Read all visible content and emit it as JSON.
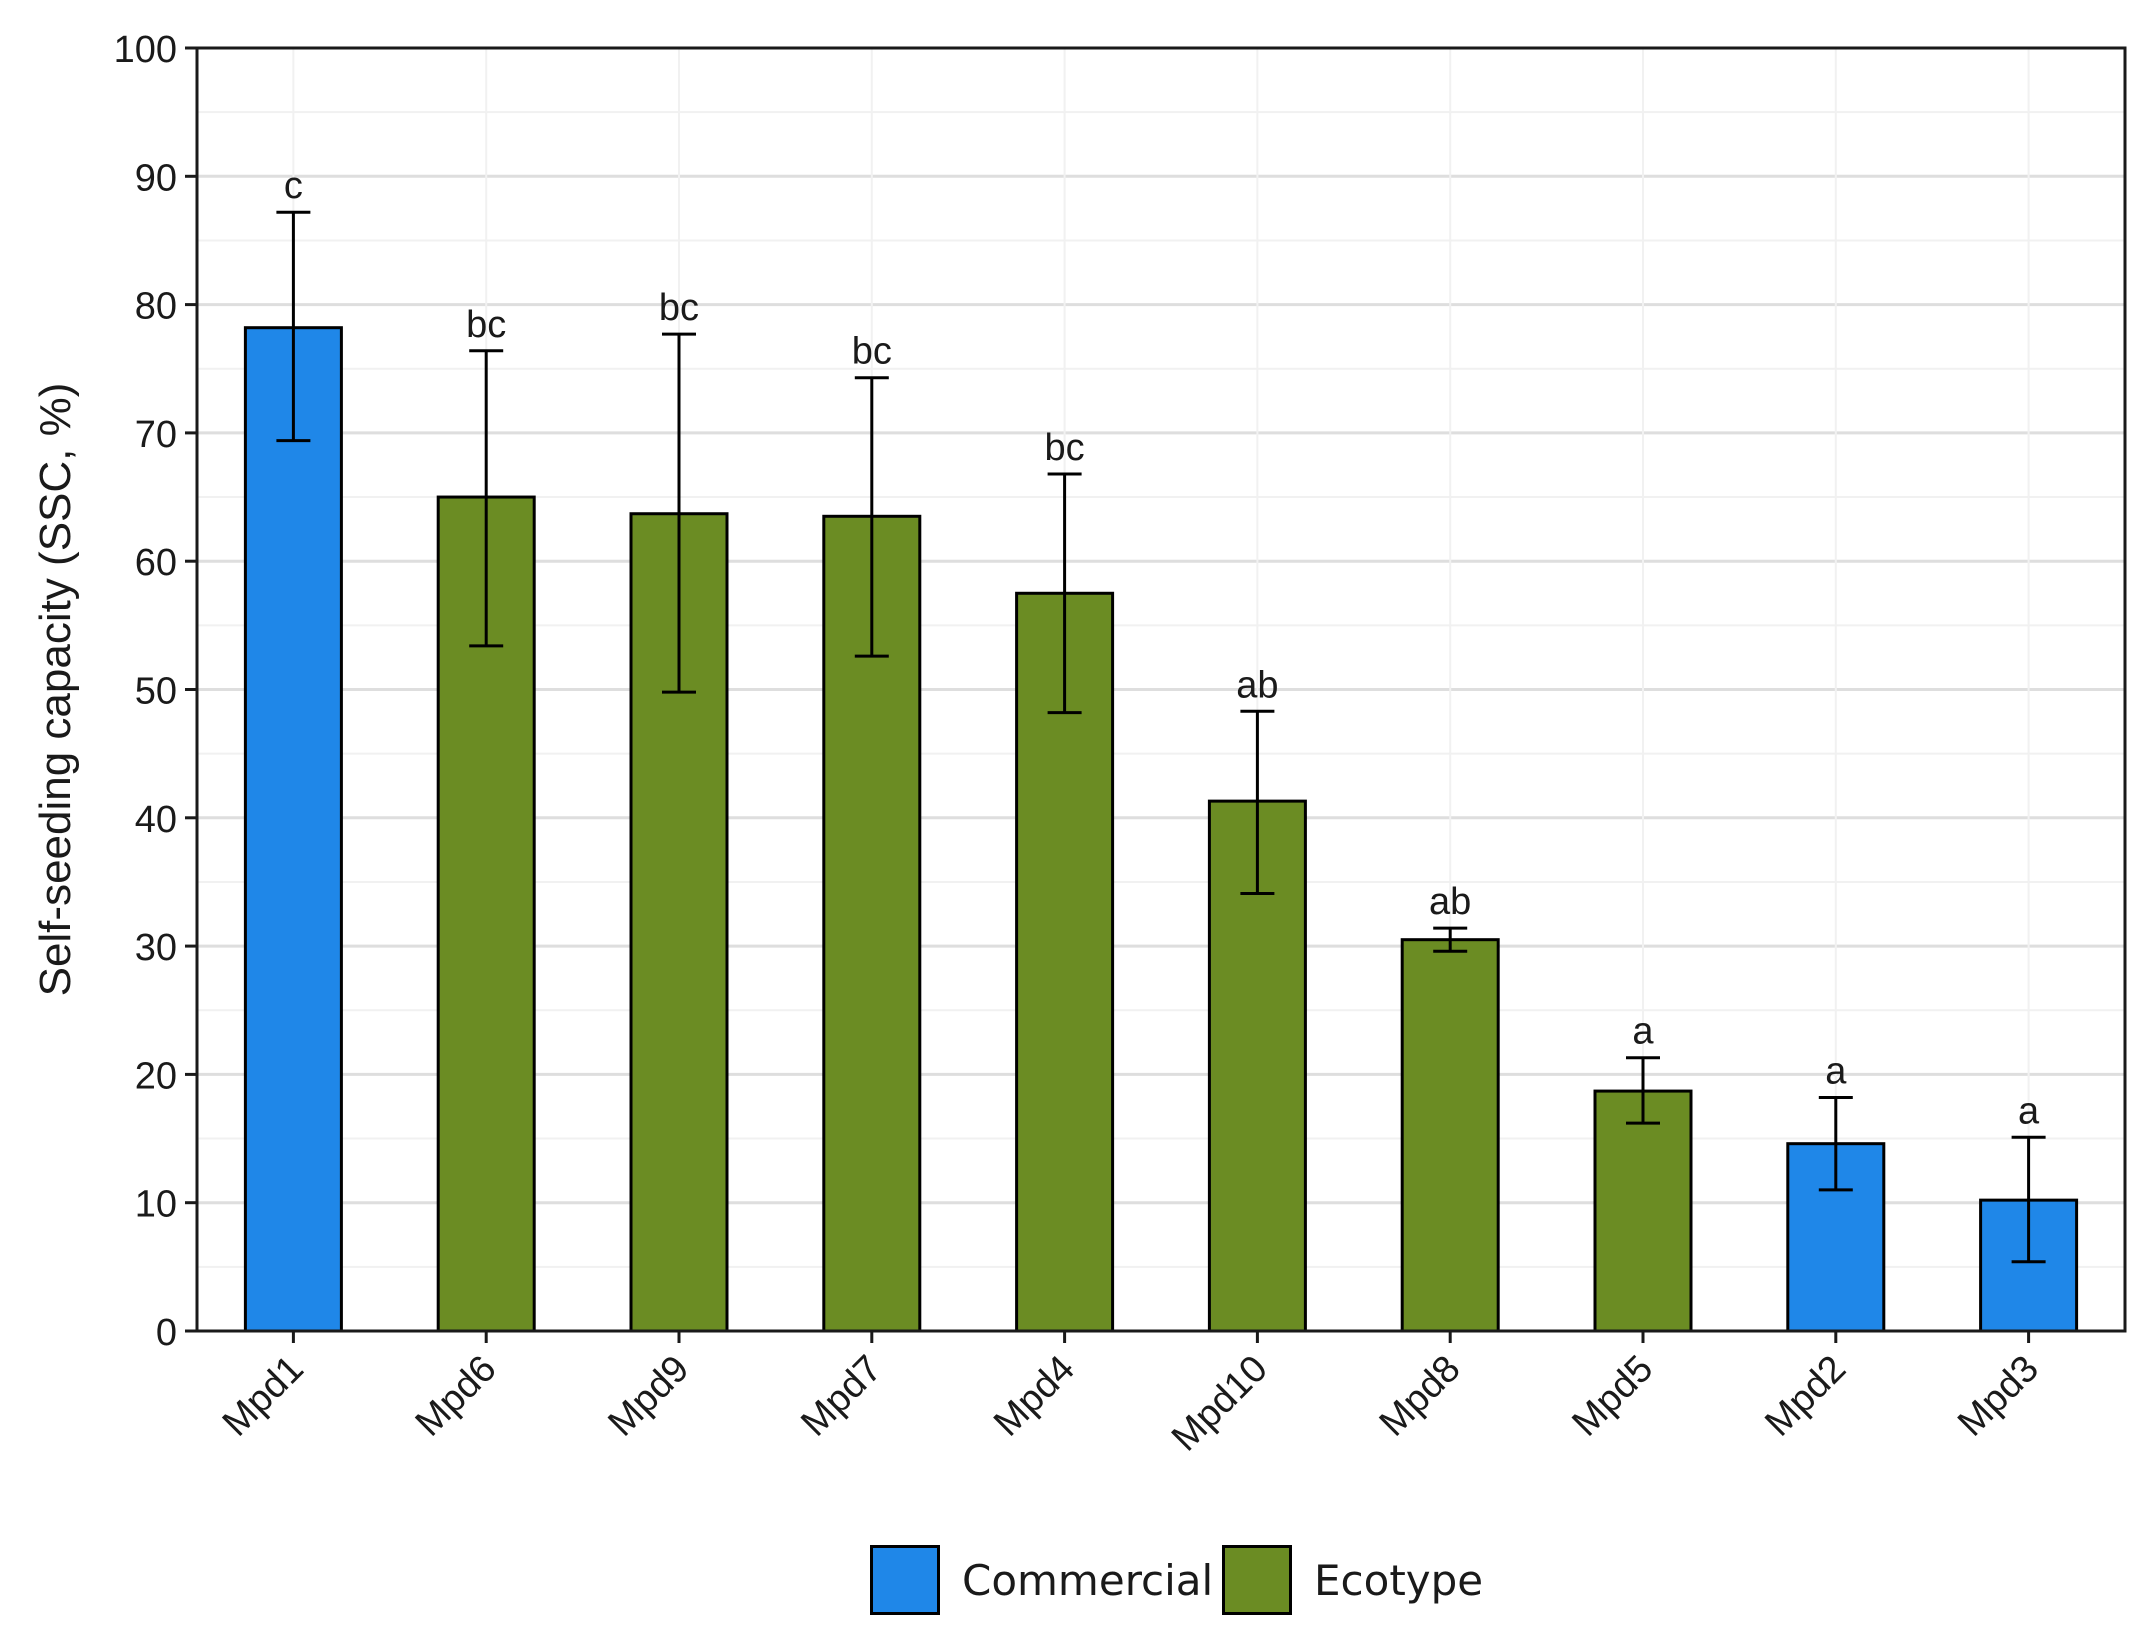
{
  "chart_data": {
    "type": "bar",
    "title": "",
    "xlabel": "",
    "ylabel": "Self-seeding capacity (SSC, %)",
    "ylim": [
      0,
      100
    ],
    "yticks": [
      0,
      10,
      20,
      30,
      40,
      50,
      60,
      70,
      80,
      90,
      100
    ],
    "grid": true,
    "legend_position": "bottom",
    "categories": [
      "Mpd1",
      "Mpd6",
      "Mpd9",
      "Mpd7",
      "Mpd4",
      "Mpd10",
      "Mpd8",
      "Mpd5",
      "Mpd2",
      "Mpd3"
    ],
    "values": [
      78.2,
      65.0,
      63.7,
      63.5,
      57.5,
      41.3,
      30.5,
      18.7,
      14.6,
      10.2
    ],
    "error_low": [
      69.4,
      53.4,
      49.8,
      52.6,
      48.2,
      34.1,
      29.6,
      16.2,
      11.0,
      5.4
    ],
    "error_high": [
      87.2,
      76.4,
      77.7,
      74.3,
      66.8,
      48.3,
      31.4,
      21.3,
      18.2,
      15.1
    ],
    "significance_labels": [
      "c",
      "bc",
      "bc",
      "bc",
      "bc",
      "ab",
      "ab",
      "a",
      "a",
      "a"
    ],
    "group": [
      "Commercial",
      "Ecotype",
      "Ecotype",
      "Ecotype",
      "Ecotype",
      "Ecotype",
      "Ecotype",
      "Ecotype",
      "Commercial",
      "Commercial"
    ],
    "legend": [
      {
        "name": "Commercial",
        "color": "#1f87e8"
      },
      {
        "name": "Ecotype",
        "color": "#6b8c23"
      }
    ]
  }
}
